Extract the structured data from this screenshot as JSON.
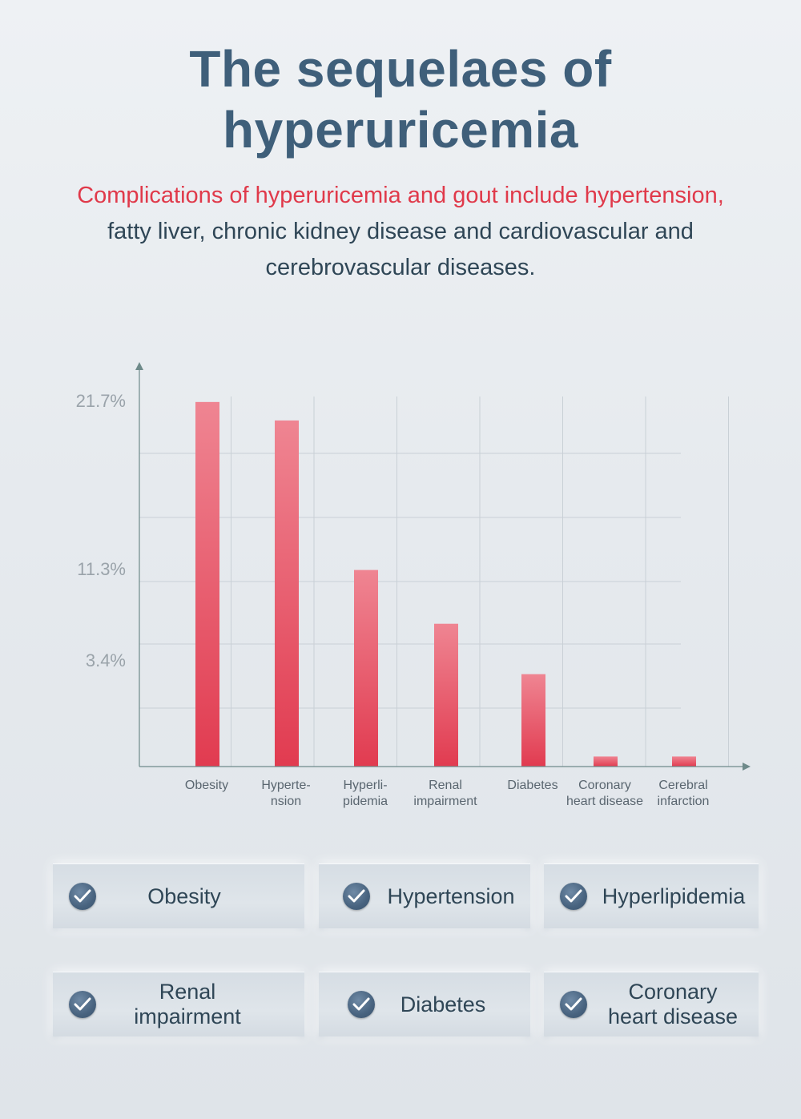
{
  "title_line1": "The sequelaes of",
  "title_line2": "hyperuricemia",
  "subtitle": {
    "highlight": "Complications of hyperuricemia and gout include hypertension,",
    "line2": "fatty liver, chronic kidney disease and cardiovascular and",
    "line3": "cerebrovascular diseases."
  },
  "chart_data": {
    "type": "bar",
    "title": "",
    "xlabel": "",
    "ylabel": "",
    "ytick_labels": [
      "21.7%",
      "11.3%",
      "3.4%"
    ],
    "categories": [
      [
        "Obesity"
      ],
      [
        "Hyperte-",
        "nsion"
      ],
      [
        "Hyperli-",
        "pidemia"
      ],
      [
        "Renal",
        "impairment"
      ],
      [
        "Diabetes"
      ],
      [
        "Coronary",
        "heart disease"
      ],
      [
        "Cerebral",
        "infarction"
      ]
    ],
    "values": [
      21.7,
      20.6,
      11.7,
      8.5,
      5.5,
      0.6,
      0.6
    ],
    "ylim": [
      0,
      23.6
    ],
    "grid": true,
    "colors": {
      "bar_top": "#ef8592",
      "bar_bottom": "#e13b50",
      "axis": "#6e8a8a",
      "grid": "#c9d0d6"
    }
  },
  "cards": [
    {
      "label": "Obesity"
    },
    {
      "label": "Hypertension"
    },
    {
      "label": "Hyperlipidemia"
    },
    {
      "label_lines": [
        "Renal",
        "impairment"
      ]
    },
    {
      "label": "Diabetes"
    },
    {
      "label_lines": [
        "Coronary",
        "heart disease"
      ]
    }
  ]
}
